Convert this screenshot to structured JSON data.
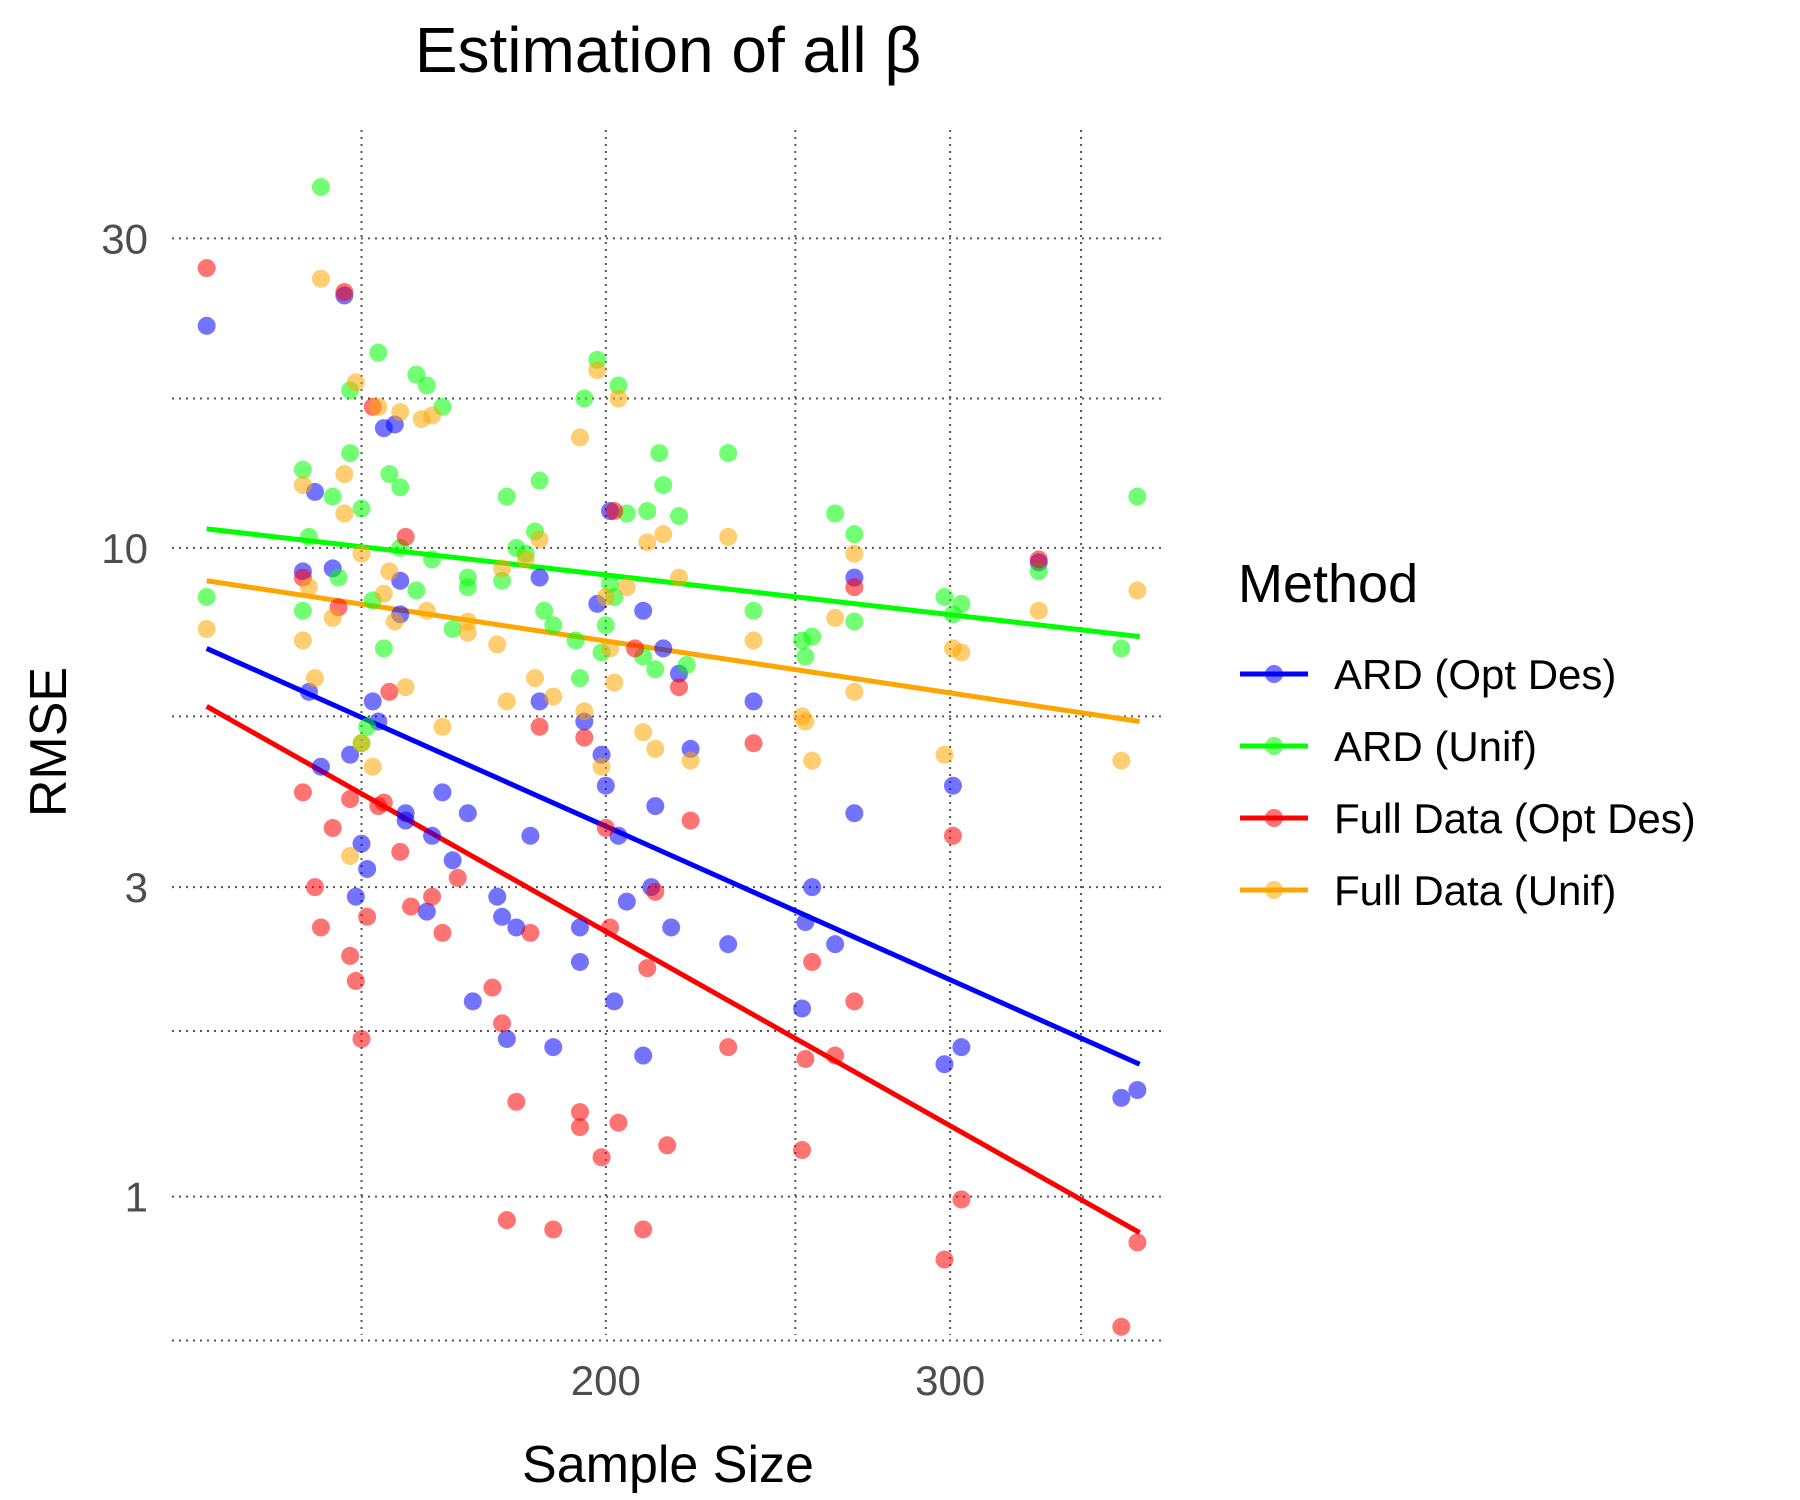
{
  "chart_data": {
    "type": "scatter",
    "title": "Estimation of all β",
    "xlabel": "Sample Size",
    "ylabel": "RMSE",
    "x_log": true,
    "y_log": true,
    "xlim": [
      120,
      385
    ],
    "ylim": [
      0.57,
      46
    ],
    "x_ticks": [
      200,
      300
    ],
    "x_minor_gridlines": [
      150,
      250,
      350
    ],
    "y_ticks": [
      1,
      3,
      10,
      30
    ],
    "y_minor_gridlines": [
      0.6,
      1.8,
      5.5,
      17
    ],
    "grid": true,
    "legend": {
      "title": "Method",
      "position": "right",
      "entries": [
        "ARD (Opt Des)",
        "ARD (Unif)",
        "Full Data (Opt Des)",
        "Full Data (Unif)"
      ]
    },
    "series": [
      {
        "name": "ARD (Opt Des)",
        "color": "#0000ff",
        "trend": {
          "x": [
            125,
            375
          ],
          "y": [
            7.0,
            1.6
          ]
        },
        "points": [
          [
            125,
            22.0
          ],
          [
            140,
            9.2
          ],
          [
            141,
            6.0
          ],
          [
            142,
            12.2
          ],
          [
            143,
            4.6
          ],
          [
            145,
            9.3
          ],
          [
            147,
            24.5
          ],
          [
            148,
            4.8
          ],
          [
            149,
            2.9
          ],
          [
            150,
            3.5
          ],
          [
            151,
            3.2
          ],
          [
            152,
            5.8
          ],
          [
            153,
            5.4
          ],
          [
            154,
            15.3
          ],
          [
            156,
            15.5
          ],
          [
            157,
            7.9
          ],
          [
            157,
            8.9
          ],
          [
            158,
            3.8
          ],
          [
            158,
            3.9
          ],
          [
            162,
            2.75
          ],
          [
            163,
            3.6
          ],
          [
            165,
            4.2
          ],
          [
            167,
            3.3
          ],
          [
            170,
            3.9
          ],
          [
            171,
            2.0
          ],
          [
            176,
            2.9
          ],
          [
            177,
            2.7
          ],
          [
            178,
            1.75
          ],
          [
            180,
            2.6
          ],
          [
            183,
            3.6
          ],
          [
            185,
            5.8
          ],
          [
            185,
            9.0
          ],
          [
            188,
            1.7
          ],
          [
            194,
            2.3
          ],
          [
            194,
            2.6
          ],
          [
            195,
            5.4
          ],
          [
            198,
            8.2
          ],
          [
            199,
            4.8
          ],
          [
            200,
            4.3
          ],
          [
            201,
            11.4
          ],
          [
            202,
            2.0
          ],
          [
            203,
            3.6
          ],
          [
            205,
            2.85
          ],
          [
            209,
            1.65
          ],
          [
            209,
            8.0
          ],
          [
            211,
            3.0
          ],
          [
            212,
            4.0
          ],
          [
            214,
            7.0
          ],
          [
            216,
            2.6
          ],
          [
            218,
            6.4
          ],
          [
            221,
            4.9
          ],
          [
            231,
            2.45
          ],
          [
            238,
            5.8
          ],
          [
            252,
            1.95
          ],
          [
            253,
            2.65
          ],
          [
            255,
            3.0
          ],
          [
            262,
            2.45
          ],
          [
            268,
            3.9
          ],
          [
            268,
            9.0
          ],
          [
            298,
            1.6
          ],
          [
            301,
            4.3
          ],
          [
            304,
            1.7
          ],
          [
            333,
            9.5
          ],
          [
            367,
            1.42
          ],
          [
            374,
            1.46
          ]
        ]
      },
      {
        "name": "ARD (Unif)",
        "color": "#00ff00",
        "trend": {
          "x": [
            125,
            375
          ],
          "y": [
            10.7,
            7.3
          ]
        },
        "points": [
          [
            125,
            8.4
          ],
          [
            140,
            8.0
          ],
          [
            140,
            13.2
          ],
          [
            141,
            10.4
          ],
          [
            143,
            36.0
          ],
          [
            145,
            12.0
          ],
          [
            146,
            9.0
          ],
          [
            148,
            14.0
          ],
          [
            148,
            17.5
          ],
          [
            150,
            5.0
          ],
          [
            150,
            11.5
          ],
          [
            151,
            5.3
          ],
          [
            152,
            8.3
          ],
          [
            153,
            20.0
          ],
          [
            154,
            7.0
          ],
          [
            155,
            13.0
          ],
          [
            157,
            12.4
          ],
          [
            157,
            10.0
          ],
          [
            160,
            8.6
          ],
          [
            160,
            18.5
          ],
          [
            162,
            17.8
          ],
          [
            163,
            9.6
          ],
          [
            165,
            16.5
          ],
          [
            167,
            7.5
          ],
          [
            170,
            9.0
          ],
          [
            170,
            8.7
          ],
          [
            177,
            8.9
          ],
          [
            178,
            12.0
          ],
          [
            180,
            10.0
          ],
          [
            182,
            9.8
          ],
          [
            184,
            10.6
          ],
          [
            185,
            12.7
          ],
          [
            186,
            8.0
          ],
          [
            188,
            7.6
          ],
          [
            193,
            7.2
          ],
          [
            194,
            6.3
          ],
          [
            195,
            17.0
          ],
          [
            198,
            19.5
          ],
          [
            199,
            6.9
          ],
          [
            200,
            7.6
          ],
          [
            201,
            8.8
          ],
          [
            202,
            8.4
          ],
          [
            203,
            17.8
          ],
          [
            205,
            11.3
          ],
          [
            209,
            6.8
          ],
          [
            210,
            11.4
          ],
          [
            212,
            6.5
          ],
          [
            213,
            14.0
          ],
          [
            214,
            12.5
          ],
          [
            218,
            11.2
          ],
          [
            220,
            6.6
          ],
          [
            231,
            14.0
          ],
          [
            238,
            8.0
          ],
          [
            252,
            7.2
          ],
          [
            253,
            6.8
          ],
          [
            255,
            7.3
          ],
          [
            262,
            11.3
          ],
          [
            268,
            7.7
          ],
          [
            268,
            10.5
          ],
          [
            298,
            8.4
          ],
          [
            301,
            7.9
          ],
          [
            304,
            8.2
          ],
          [
            333,
            9.2
          ],
          [
            367,
            7.0
          ],
          [
            374,
            12.0
          ]
        ]
      },
      {
        "name": "Full Data (Opt Des)",
        "color": "#ff0000",
        "trend": {
          "x": [
            125,
            375
          ],
          "y": [
            5.7,
            0.88
          ]
        },
        "points": [
          [
            125,
            27.0
          ],
          [
            140,
            9.0
          ],
          [
            140,
            4.2
          ],
          [
            142,
            3.0
          ],
          [
            143,
            2.6
          ],
          [
            145,
            3.7
          ],
          [
            146,
            8.1
          ],
          [
            147,
            24.8
          ],
          [
            148,
            2.35
          ],
          [
            148,
            4.1
          ],
          [
            149,
            2.15
          ],
          [
            150,
            1.75
          ],
          [
            151,
            2.7
          ],
          [
            152,
            16.5
          ],
          [
            153,
            4.0
          ],
          [
            154,
            4.05
          ],
          [
            155,
            6.0
          ],
          [
            157,
            3.4
          ],
          [
            158,
            10.4
          ],
          [
            159,
            2.8
          ],
          [
            163,
            2.9
          ],
          [
            165,
            2.55
          ],
          [
            168,
            3.1
          ],
          [
            175,
            2.1
          ],
          [
            177,
            1.85
          ],
          [
            178,
            0.92
          ],
          [
            180,
            1.4
          ],
          [
            183,
            2.55
          ],
          [
            185,
            5.3
          ],
          [
            188,
            0.89
          ],
          [
            194,
            1.35
          ],
          [
            194,
            1.28
          ],
          [
            195,
            5.1
          ],
          [
            199,
            1.15
          ],
          [
            200,
            3.7
          ],
          [
            201,
            2.6
          ],
          [
            202,
            11.4
          ],
          [
            203,
            1.3
          ],
          [
            207,
            7.0
          ],
          [
            209,
            0.89
          ],
          [
            210,
            2.25
          ],
          [
            212,
            2.95
          ],
          [
            215,
            1.2
          ],
          [
            218,
            6.1
          ],
          [
            221,
            3.8
          ],
          [
            231,
            1.7
          ],
          [
            238,
            5.0
          ],
          [
            252,
            1.18
          ],
          [
            253,
            1.63
          ],
          [
            255,
            2.3
          ],
          [
            262,
            1.65
          ],
          [
            268,
            2.0
          ],
          [
            268,
            8.7
          ],
          [
            298,
            0.8
          ],
          [
            301,
            3.6
          ],
          [
            304,
            0.99
          ],
          [
            333,
            9.6
          ],
          [
            367,
            0.63
          ],
          [
            374,
            0.85
          ]
        ]
      },
      {
        "name": "Full Data (Unif)",
        "color": "#ffa500",
        "trend": {
          "x": [
            125,
            375
          ],
          "y": [
            8.9,
            5.4
          ]
        },
        "points": [
          [
            125,
            7.5
          ],
          [
            140,
            12.5
          ],
          [
            140,
            7.2
          ],
          [
            141,
            8.7
          ],
          [
            142,
            6.3
          ],
          [
            143,
            26.0
          ],
          [
            145,
            7.8
          ],
          [
            147,
            13.0
          ],
          [
            147,
            11.3
          ],
          [
            148,
            3.35
          ],
          [
            149,
            18.0
          ],
          [
            150,
            9.8
          ],
          [
            150,
            5.0
          ],
          [
            152,
            4.6
          ],
          [
            153,
            16.5
          ],
          [
            154,
            8.5
          ],
          [
            155,
            9.2
          ],
          [
            156,
            7.7
          ],
          [
            157,
            16.2
          ],
          [
            158,
            6.1
          ],
          [
            161,
            15.8
          ],
          [
            162,
            8.0
          ],
          [
            163,
            16.0
          ],
          [
            165,
            5.3
          ],
          [
            170,
            7.7
          ],
          [
            170,
            7.4
          ],
          [
            176,
            7.1
          ],
          [
            177,
            9.3
          ],
          [
            178,
            5.8
          ],
          [
            182,
            9.6
          ],
          [
            184,
            6.3
          ],
          [
            185,
            10.3
          ],
          [
            188,
            5.9
          ],
          [
            194,
            14.8
          ],
          [
            195,
            5.6
          ],
          [
            198,
            18.8
          ],
          [
            199,
            4.6
          ],
          [
            200,
            8.4
          ],
          [
            201,
            7.0
          ],
          [
            202,
            6.2
          ],
          [
            203,
            17.0
          ],
          [
            205,
            8.7
          ],
          [
            209,
            5.2
          ],
          [
            210,
            10.2
          ],
          [
            212,
            4.9
          ],
          [
            214,
            10.5
          ],
          [
            218,
            9.0
          ],
          [
            221,
            4.7
          ],
          [
            231,
            10.4
          ],
          [
            238,
            7.2
          ],
          [
            252,
            5.5
          ],
          [
            253,
            5.4
          ],
          [
            255,
            4.7
          ],
          [
            262,
            7.8
          ],
          [
            268,
            6.0
          ],
          [
            268,
            9.8
          ],
          [
            298,
            4.8
          ],
          [
            301,
            7.0
          ],
          [
            304,
            6.9
          ],
          [
            333,
            8.0
          ],
          [
            367,
            4.7
          ],
          [
            374,
            8.6
          ]
        ]
      }
    ]
  }
}
